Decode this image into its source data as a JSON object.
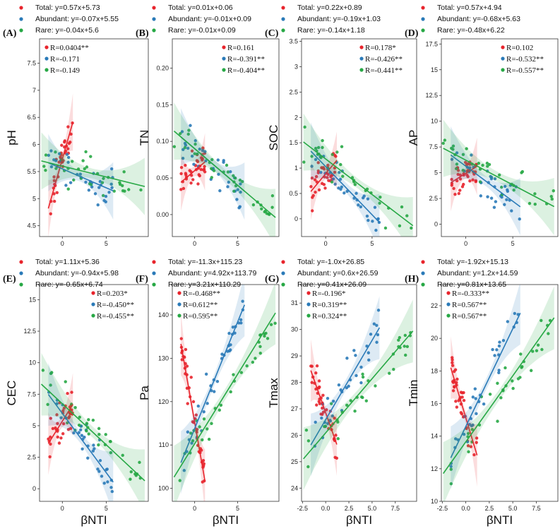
{
  "colors": {
    "total": "#e8242c",
    "abundant": "#2a7ab8",
    "rare": "#27a845"
  },
  "panels_order": [
    "A",
    "B",
    "C",
    "D",
    "E",
    "F",
    "G",
    "H"
  ],
  "chart_data": [
    {
      "type": "scatter",
      "panel_label": "(A)",
      "ylabel": "pH",
      "xlabel": "",
      "ylim": [
        4.3,
        7.95
      ],
      "yticks": [
        4.5,
        5.0,
        5.5,
        6.0,
        6.5,
        7.0,
        7.5
      ],
      "xlim": [
        -2.6,
        9.8
      ],
      "xticks": [
        0,
        5
      ],
      "xtick_labels": [],
      "legend_loc": "top-left",
      "equations": [
        {
          "label": "Total: y=0.57x+5.73",
          "slope": 0.57,
          "intercept": 5.73,
          "x_range": [
            -1.6,
            1.2
          ]
        },
        {
          "label": "Abundant: y=-0.07x+5.55",
          "slope": -0.07,
          "intercept": 5.55,
          "x_range": [
            -1.6,
            5.8
          ]
        },
        {
          "label": "Rare: y=-0.04x+5.6",
          "slope": -0.04,
          "intercept": 5.6,
          "x_range": [
            -2.4,
            9.4
          ]
        }
      ],
      "r_values": [
        "R=0.0404**",
        "R=-0.171",
        "R=-0.149"
      ]
    },
    {
      "type": "scatter",
      "panel_label": "(B)",
      "ylabel": "TN",
      "xlabel": "",
      "ylim": [
        -0.03,
        0.24
      ],
      "yticks": [
        0.0,
        0.05,
        0.1,
        0.15,
        0.2
      ],
      "ytick_labels": [
        "0.00",
        "0.05",
        "0.10",
        "0.15",
        "0.20"
      ],
      "xlim": [
        -2.6,
        9.8
      ],
      "xticks": [
        0,
        5
      ],
      "xtick_labels": [],
      "legend_loc": "top-right",
      "equations": [
        {
          "label": "Total: y=0.01x+0.06",
          "slope": 0.01,
          "intercept": 0.06,
          "x_range": [
            -1.6,
            1.2
          ]
        },
        {
          "label": "Abundant: y=-0.01x+0.09",
          "slope": -0.01,
          "intercept": 0.09,
          "x_range": [
            -1.6,
            5.8
          ]
        },
        {
          "label": "Rare: y=-0.01x+0.09",
          "slope": -0.01,
          "intercept": 0.09,
          "x_range": [
            -2.4,
            9.4
          ]
        }
      ],
      "r_values": [
        "R=0.161",
        "R=-0.391**",
        "R=-0.404**"
      ]
    },
    {
      "type": "scatter",
      "panel_label": "(C)",
      "ylabel": "SOC",
      "xlabel": "",
      "ylim": [
        -0.35,
        3.55
      ],
      "yticks": [
        0.0,
        0.5,
        1.0,
        1.5,
        2.0,
        2.5,
        3.0,
        3.5
      ],
      "xlim": [
        -2.6,
        9.8
      ],
      "xticks": [
        0,
        5
      ],
      "xtick_labels": [],
      "legend_loc": "top-right",
      "equations": [
        {
          "label": "Total: y=0.22x+0.89",
          "slope": 0.22,
          "intercept": 0.89,
          "x_range": [
            -1.6,
            1.2
          ]
        },
        {
          "label": "Abundant: y=-0.19x+1.03",
          "slope": -0.19,
          "intercept": 1.03,
          "x_range": [
            -1.6,
            5.8
          ]
        },
        {
          "label": "Rare: y=-0.14x+1.18",
          "slope": -0.14,
          "intercept": 1.18,
          "x_range": [
            -2.4,
            9.4
          ]
        }
      ],
      "r_values": [
        "R=0.178*",
        "R=-0.426**",
        "R=-0.441**"
      ]
    },
    {
      "type": "scatter",
      "panel_label": "(D)",
      "ylabel": "AP",
      "xlabel": "",
      "ylim": [
        -1.2,
        18.0
      ],
      "yticks": [
        0.0,
        2.5,
        5.0,
        7.5,
        10.0,
        12.5,
        15.0,
        17.5
      ],
      "xlim": [
        -2.6,
        9.8
      ],
      "xticks": [
        0,
        5
      ],
      "xtick_labels": [],
      "legend_loc": "top-right",
      "equations": [
        {
          "label": "Total: y=0.57x+4.94",
          "slope": 0.57,
          "intercept": 4.94,
          "x_range": [
            -1.6,
            1.2
          ]
        },
        {
          "label": "Abundant: y=-0.68x+5.63",
          "slope": -0.68,
          "intercept": 5.63,
          "x_range": [
            -1.6,
            5.8
          ]
        },
        {
          "label": "Rare: y=-0.48x+6.22",
          "slope": -0.48,
          "intercept": 6.22,
          "x_range": [
            -2.4,
            9.4
          ]
        }
      ],
      "r_values": [
        "R=0.102",
        "R=-0.532**",
        "R=-0.557**"
      ]
    },
    {
      "type": "scatter",
      "panel_label": "(E)",
      "ylabel": "CEC",
      "xlabel": "βNTI",
      "ylim": [
        -1.0,
        16.2
      ],
      "yticks": [
        0.0,
        2.5,
        5.0,
        7.5,
        10.0,
        12.5,
        15.0
      ],
      "xlim": [
        -2.6,
        9.8
      ],
      "xticks": [
        0,
        5
      ],
      "xtick_labels": [],
      "legend_loc": "top-right",
      "equations": [
        {
          "label": "Total: y=1.11x+5.36",
          "slope": 1.11,
          "intercept": 5.36,
          "x_range": [
            -1.6,
            1.2
          ]
        },
        {
          "label": "Abundant: y=-0.94x+5.98",
          "slope": -0.94,
          "intercept": 5.98,
          "x_range": [
            -1.6,
            5.8
          ]
        },
        {
          "label": "Rare: y=-0.65x+6.74",
          "slope": -0.65,
          "intercept": 6.74,
          "x_range": [
            -2.4,
            9.4
          ]
        }
      ],
      "r_values": [
        "R=0.203*",
        "R=-0.450**",
        "R=-0.455**"
      ]
    },
    {
      "type": "scatter",
      "panel_label": "(F)",
      "ylabel": "Pa",
      "xlabel": "βNTI",
      "ylim": [
        97,
        147
      ],
      "yticks": [
        100,
        110,
        120,
        130,
        140
      ],
      "xlim": [
        -2.6,
        9.8
      ],
      "xticks": [
        0,
        5
      ],
      "xtick_labels": [],
      "legend_loc": "top-left",
      "equations": [
        {
          "label": "Total: y=-11.3x+115.23",
          "slope": -11.3,
          "intercept": 115.23,
          "x_range": [
            -1.6,
            1.2
          ]
        },
        {
          "label": "Abundant: y=4.92x+113.79",
          "slope": 4.92,
          "intercept": 113.79,
          "x_range": [
            -1.6,
            5.8
          ]
        },
        {
          "label": "Rare: y=3.21x+110.29",
          "slope": 3.21,
          "intercept": 110.29,
          "x_range": [
            -2.4,
            9.4
          ]
        }
      ],
      "r_values": [
        "R=-0.468**",
        "R=0.612**",
        "R=0.595**"
      ]
    },
    {
      "type": "scatter",
      "panel_label": "(G)",
      "ylabel": "Tmax",
      "xlabel": "βNTI",
      "ylim": [
        23.5,
        31.7
      ],
      "yticks": [
        24,
        25,
        26,
        27,
        28,
        29,
        30,
        31
      ],
      "xlim": [
        -2.6,
        9.8
      ],
      "xticks": [
        -2.5,
        0.0,
        2.5,
        5.0,
        7.5
      ],
      "xtick_labels": [
        "-2.5",
        "0.0",
        "2.5",
        "5.0",
        "7.5"
      ],
      "legend_loc": "top-left",
      "equations": [
        {
          "label": "Total: y=-1.0x+26.85",
          "slope": -1.0,
          "intercept": 26.85,
          "x_range": [
            -1.6,
            1.2
          ]
        },
        {
          "label": "Abundant: y=0.6x+26.59",
          "slope": 0.6,
          "intercept": 26.59,
          "x_range": [
            -1.6,
            5.8
          ]
        },
        {
          "label": "Rare: y=0.41x+26.09",
          "slope": 0.41,
          "intercept": 26.09,
          "x_range": [
            -2.4,
            9.4
          ]
        }
      ],
      "r_values": [
        "R=-0.196*",
        "R=0.319**",
        "R=0.324**"
      ]
    },
    {
      "type": "scatter",
      "panel_label": "(H)",
      "ylabel": "Tmin",
      "xlabel": "βNTI",
      "ylim": [
        10,
        23.3
      ],
      "yticks": [
        10,
        12,
        14,
        16,
        18,
        20,
        22
      ],
      "xlim": [
        -2.6,
        9.8
      ],
      "xticks": [
        -2.5,
        0.0,
        2.5,
        5.0,
        7.5
      ],
      "xtick_labels": [
        "-2.5",
        "0.0",
        "2.5",
        "5.0",
        "7.5"
      ],
      "legend_loc": "top-left",
      "equations": [
        {
          "label": "Total: y=-1.92x+15.13",
          "slope": -1.92,
          "intercept": 15.13,
          "x_range": [
            -1.6,
            1.2
          ]
        },
        {
          "label": "Abundant: y=1.2x+14.59",
          "slope": 1.2,
          "intercept": 14.59,
          "x_range": [
            -1.6,
            5.8
          ]
        },
        {
          "label": "Rare: y=0.81x+13.65",
          "slope": 0.81,
          "intercept": 13.65,
          "x_range": [
            -2.4,
            9.4
          ]
        }
      ],
      "r_values": [
        "R=-0.333**",
        "R=0.567**",
        "R=0.567**"
      ]
    }
  ]
}
